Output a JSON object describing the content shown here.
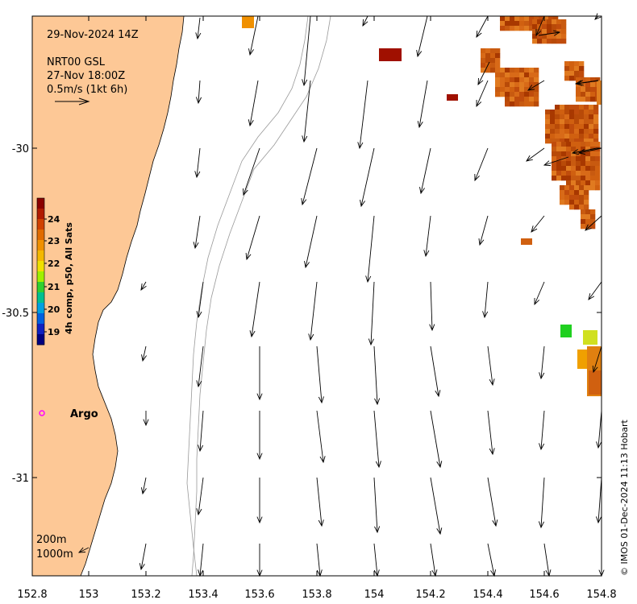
{
  "map": {
    "date_label": "29-Nov-2024 14Z",
    "source_label": "NRT00 GSL",
    "source_time": "27-Nov 18:00Z",
    "scale_label": "0.5m/s (1kt 6h)",
    "x_ticks": [
      "152.8",
      "153",
      "153.2",
      "153.4",
      "153.6",
      "153.8",
      "154",
      "154.2",
      "154.4",
      "154.6",
      "154.8"
    ],
    "y_ticks": [
      "-30",
      "-30.5",
      "-31"
    ],
    "colorbar_label": "4h comp, p50, All Sats",
    "colorbar_ticks": [
      "24",
      "23",
      "22",
      "21",
      "20",
      "19"
    ],
    "argo_label": "Argo",
    "isobath_200": "200m",
    "isobath_1000": "1000m",
    "credit": "© IMOS 01-Dec-2024 11:13 Hobart",
    "colors": {
      "land": "#fdc896",
      "argo": "#ff00ff",
      "sst_warm": "#c85a10",
      "sst_hot": "#a01000",
      "sst_yellow": "#f0e020",
      "sst_green": "#20d020"
    }
  }
}
